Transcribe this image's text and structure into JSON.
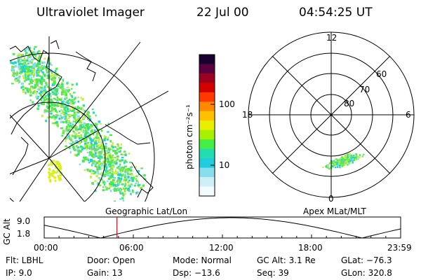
{
  "header": {
    "title": "Ultraviolet Imager",
    "date": "22 Jul 00",
    "time": "04:54:25 UT"
  },
  "geo_panel": {
    "label": "Geographic Lat/Lon"
  },
  "polar_panel": {
    "label": "Apex MLat/MLT",
    "mlt_labels": {
      "top": "12",
      "left": "18",
      "right": "6",
      "bottom": "0"
    },
    "lat_labels": [
      "60",
      "70",
      "80"
    ]
  },
  "colorbar": {
    "unit_label": "photon cm⁻²s⁻¹",
    "ticks": [
      "100",
      "10"
    ],
    "colors": [
      "#1a0030",
      "#5a0040",
      "#9b0020",
      "#d40000",
      "#ff3800",
      "#ff8a00",
      "#ffc000",
      "#e8f000",
      "#a8f000",
      "#44ee44",
      "#22ddb0",
      "#22ccdd",
      "#88ddee",
      "#ccf0f6",
      "#f4fbfc"
    ]
  },
  "altitude_plot": {
    "ylabel": "GC Alt",
    "ymax_label": "9.0",
    "ymin_label": "1.8",
    "x_ticks": [
      "00:00",
      "06:00",
      "12:00",
      "18:00",
      "23:59"
    ],
    "current_time_marker_hours": 4.9,
    "marker_color": "#dd0000"
  },
  "info": {
    "flt": "Flt: LBHL",
    "ip": "IP: 9.0",
    "door": "Door: Open",
    "gain": "Gain: 13",
    "mode": "Mode: Normal",
    "dsp": "Dsp: −13.6",
    "gc_alt": "GC Alt: 3.1 Re",
    "seq": "Seq: 39",
    "glat": "GLat: −76.3",
    "glon": "GLon: 320.8"
  }
}
